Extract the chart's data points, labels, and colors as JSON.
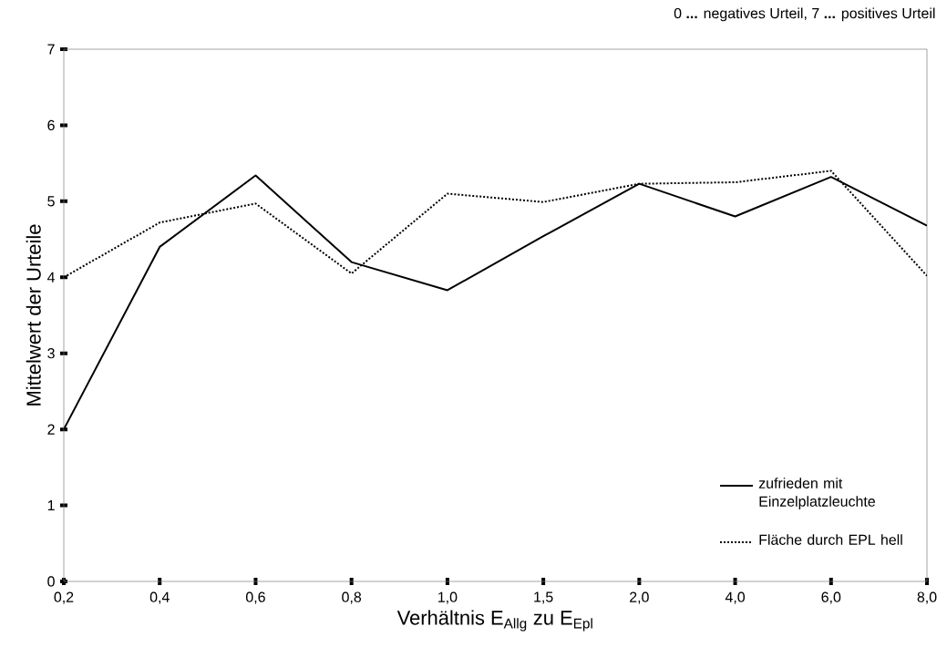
{
  "chart_data": {
    "type": "line",
    "xlabel": "Verhältnis E$_{Allg}$ zu E$_{Epl}$",
    "ylabel": "Mittelwert der Urteile",
    "annotations": [
      "0 **...** negatives Urteil, 7 **...** positives Urteil"
    ],
    "categories": [
      "0,2",
      "0,4",
      "0,6",
      "0,8",
      "1,0",
      "1,5",
      "2,0",
      "4,0",
      "6,0",
      "8,0"
    ],
    "series": [
      {
        "name": "zufrieden mit Einzelplatzleuchte",
        "color": "#000000",
        "line_style": "solid",
        "values": [
          2.0,
          4.4,
          5.34,
          4.2,
          3.83,
          4.54,
          5.23,
          4.8,
          5.32,
          4.68
        ]
      },
      {
        "name": "Fläche durch EPL hell",
        "color": "#000000",
        "line_style": "dotted",
        "values": [
          4.0,
          4.72,
          4.97,
          4.05,
          5.1,
          4.99,
          5.23,
          5.25,
          5.4,
          4.02
        ]
      }
    ],
    "ylim": [
      0,
      7
    ],
    "yticks": [
      0,
      1,
      2,
      3,
      4,
      5,
      6,
      7
    ],
    "grid": false,
    "legend": "bottom right"
  }
}
